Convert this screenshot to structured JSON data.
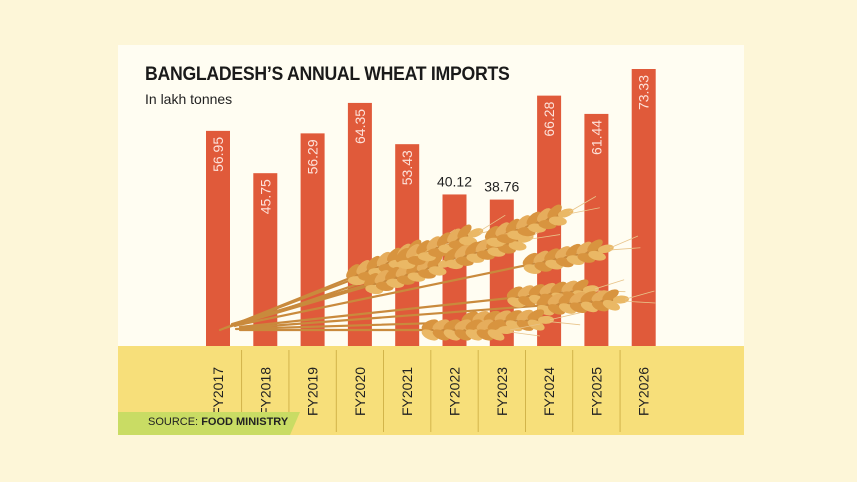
{
  "title": "BANGLADESH’S ANNUAL WHEAT IMPORTS",
  "subtitle": "In lakh tonnes",
  "source": {
    "label": "SOURCE:",
    "value": "FOOD MINISTRY"
  },
  "colors": {
    "bar": "#e05a3a",
    "band": "#f7df7a",
    "source_tag": "#c9dc64",
    "label_in_bar": "#fde2da",
    "label_outside": "#222222",
    "wheat": "#e0a450"
  },
  "chart_data": {
    "type": "bar",
    "categories": [
      "FY2017",
      "FY2018",
      "FY2019",
      "FY2020",
      "FY2021",
      "FY2022",
      "FY2023",
      "FY2024",
      "FY2025",
      "FY2026"
    ],
    "values": [
      56.95,
      45.75,
      56.29,
      64.35,
      53.43,
      40.12,
      38.76,
      66.28,
      61.44,
      73.33
    ],
    "value_labels": [
      "56.95",
      "45.75",
      "56.29",
      "64.35",
      "53.43",
      "40.12",
      "38.76",
      "66.28",
      "61.44",
      "73.33"
    ],
    "title": "BANGLADESH’S ANNUAL WHEAT IMPORTS",
    "ylabel": "In lakh tonnes",
    "grid": false,
    "legend": "none"
  }
}
